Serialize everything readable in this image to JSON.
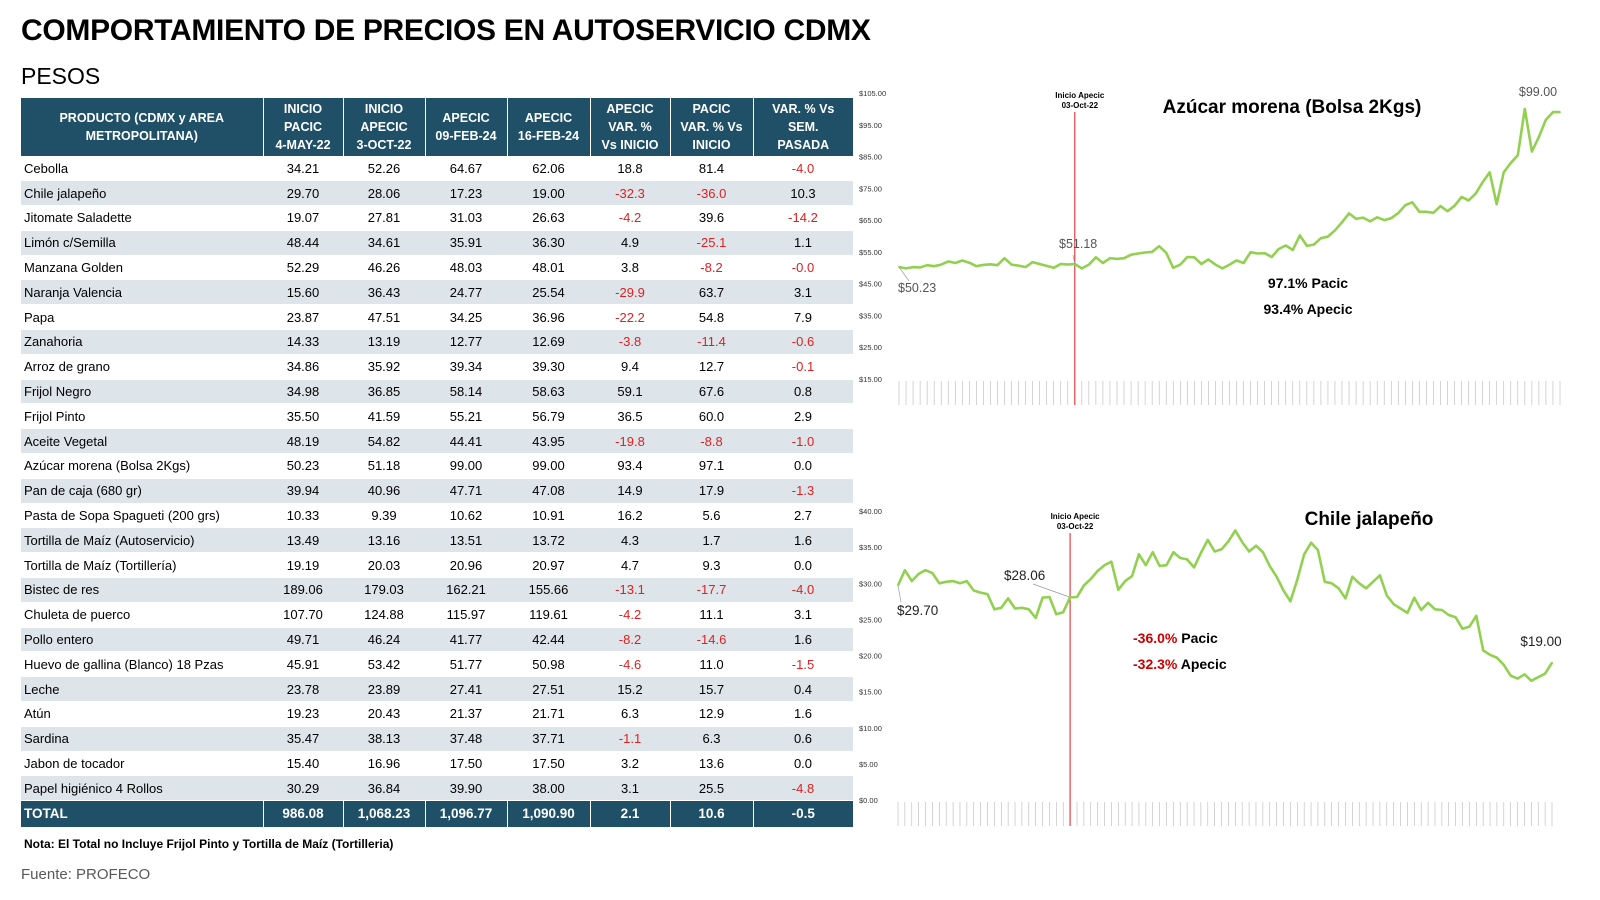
{
  "header": {
    "title": "COMPORTAMIENTO DE PRECIOS EN AUTOSERVICIO CDMX",
    "subtitle": "PESOS"
  },
  "table": {
    "columns": [
      [
        "PRODUCTO (CDMX y AREA",
        "METROPOLITANA)"
      ],
      [
        "INICIO",
        "PACIC",
        "4-MAY-22"
      ],
      [
        "INICIO",
        "APECIC",
        "3-OCT-22"
      ],
      [
        "APECIC",
        "09-FEB-24"
      ],
      [
        "APECIC",
        "16-FEB-24"
      ],
      [
        "APECIC",
        "VAR. %",
        "Vs  INICIO"
      ],
      [
        "PACIC",
        "VAR. % Vs",
        "INICIO"
      ],
      [
        "VAR. % Vs",
        "SEM.",
        "PASADA"
      ]
    ],
    "rows": [
      [
        "Cebolla",
        "34.21",
        "52.26",
        "64.67",
        "62.06",
        "18.8",
        "81.4",
        "-4.0"
      ],
      [
        "Chile jalapeño",
        "29.70",
        "28.06",
        "17.23",
        "19.00",
        "-32.3",
        "-36.0",
        "10.3"
      ],
      [
        "Jitomate Saladette",
        "19.07",
        "27.81",
        "31.03",
        "26.63",
        "-4.2",
        "39.6",
        "-14.2"
      ],
      [
        "Limón c/Semilla",
        "48.44",
        "34.61",
        "35.91",
        "36.30",
        "4.9",
        "-25.1",
        "1.1"
      ],
      [
        "Manzana Golden",
        "52.29",
        "46.26",
        "48.03",
        "48.01",
        "3.8",
        "-8.2",
        "-0.0"
      ],
      [
        "Naranja Valencia",
        "15.60",
        "36.43",
        "24.77",
        "25.54",
        "-29.9",
        "63.7",
        "3.1"
      ],
      [
        "Papa",
        "23.87",
        "47.51",
        "34.25",
        "36.96",
        "-22.2",
        "54.8",
        "7.9"
      ],
      [
        "Zanahoria",
        "14.33",
        "13.19",
        "12.77",
        "12.69",
        "-3.8",
        "-11.4",
        "-0.6"
      ],
      [
        "Arroz de grano",
        "34.86",
        "35.92",
        "39.34",
        "39.30",
        "9.4",
        "12.7",
        "-0.1"
      ],
      [
        "Frijol Negro",
        "34.98",
        "36.85",
        "58.14",
        "58.63",
        "59.1",
        "67.6",
        "0.8"
      ],
      [
        "Frijol Pinto",
        "35.50",
        "41.59",
        "55.21",
        "56.79",
        "36.5",
        "60.0",
        "2.9"
      ],
      [
        "Aceite Vegetal",
        "48.19",
        "54.82",
        "44.41",
        "43.95",
        "-19.8",
        "-8.8",
        "-1.0"
      ],
      [
        "Azúcar morena (Bolsa 2Kgs)",
        "50.23",
        "51.18",
        "99.00",
        "99.00",
        "93.4",
        "97.1",
        "0.0"
      ],
      [
        "Pan de caja (680 gr)",
        "39.94",
        "40.96",
        "47.71",
        "47.08",
        "14.9",
        "17.9",
        "-1.3"
      ],
      [
        "Pasta de Sopa Spagueti (200 grs)",
        "10.33",
        "9.39",
        "10.62",
        "10.91",
        "16.2",
        "5.6",
        "2.7"
      ],
      [
        "Tortilla de Maíz (Autoservicio)",
        "13.49",
        "13.16",
        "13.51",
        "13.72",
        "4.3",
        "1.7",
        "1.6"
      ],
      [
        "Tortilla de Maíz (Tortillería)",
        "19.19",
        "20.03",
        "20.96",
        "20.97",
        "4.7",
        "9.3",
        "0.0"
      ],
      [
        "Bistec de res",
        "189.06",
        "179.03",
        "162.21",
        "155.66",
        "-13.1",
        "-17.7",
        "-4.0"
      ],
      [
        "Chuleta de puerco",
        "107.70",
        "124.88",
        "115.97",
        "119.61",
        "-4.2",
        "11.1",
        "3.1"
      ],
      [
        "Pollo entero",
        "49.71",
        "46.24",
        "41.77",
        "42.44",
        "-8.2",
        "-14.6",
        "1.6"
      ],
      [
        "Huevo de gallina (Blanco) 18 Pzas",
        "45.91",
        "53.42",
        "51.77",
        "50.98",
        "-4.6",
        "11.0",
        "-1.5"
      ],
      [
        "Leche",
        "23.78",
        "23.89",
        "27.41",
        "27.51",
        "15.2",
        "15.7",
        "0.4"
      ],
      [
        "Atún",
        "19.23",
        "20.43",
        "21.37",
        "21.71",
        "6.3",
        "12.9",
        "1.6"
      ],
      [
        "Sardina",
        "35.47",
        "38.13",
        "37.48",
        "37.71",
        "-1.1",
        "6.3",
        "0.6"
      ],
      [
        "Jabon de tocador",
        "15.40",
        "16.96",
        "17.50",
        "17.50",
        "3.2",
        "13.6",
        "0.0"
      ],
      [
        "Papel higiénico 4 Rollos",
        "30.29",
        "36.84",
        "39.90",
        "38.00",
        "3.1",
        "25.5",
        "-4.8"
      ]
    ],
    "total": [
      "TOTAL",
      "986.08",
      "1,068.23",
      "1,096.77",
      "1,090.90",
      "2.1",
      "10.6",
      "-0.5"
    ],
    "negative_color": "#e02020",
    "header_color": "#1f5068",
    "stripe_color": "#dde4ea"
  },
  "note": "Nota: El Total no Incluye Frijol Pinto y Tortilla de Maíz (Tortilleria)",
  "source": "Fuente: PROFECO",
  "chart_data": [
    {
      "type": "line",
      "title": "Azúcar morena (Bolsa 2Kgs)",
      "color": "#92d050",
      "ylim": [
        15,
        105
      ],
      "yticks": [
        "$15.00",
        "$25.00",
        "$35.00",
        "$45.00",
        "$55.00",
        "$65.00",
        "$75.00",
        "$85.00",
        "$95.00",
        "$105.00"
      ],
      "marker_index": 25,
      "marker_label": [
        "Inicio Apecic",
        "03-Oct-22"
      ],
      "annotations": {
        "start": "$50.23",
        "apecic": "$51.18",
        "end": "$99.00"
      },
      "stats": [
        {
          "value": "97.1%",
          "label": " Pacic",
          "color": "#000000"
        },
        {
          "value": "93.4%",
          "label": " Apecic",
          "color": "#000000"
        }
      ],
      "values": [
        50.23,
        49.8,
        50.2,
        50.1,
        50.8,
        50.5,
        51.0,
        52.0,
        51.5,
        52.3,
        51.6,
        50.5,
        50.9,
        51.1,
        50.8,
        53.0,
        51.0,
        50.7,
        50.2,
        51.8,
        51.2,
        50.6,
        50.0,
        51.2,
        51.0,
        51.18,
        49.8,
        51.0,
        53.3,
        51.5,
        53.0,
        52.8,
        53.0,
        54.1,
        54.5,
        54.8,
        55.0,
        56.8,
        54.7,
        50.0,
        51.0,
        53.4,
        53.3,
        51.2,
        52.6,
        51.0,
        49.8,
        51.0,
        52.3,
        51.5,
        54.9,
        54.5,
        54.6,
        53.4,
        55.9,
        57.0,
        55.6,
        60.2,
        56.9,
        57.3,
        59.3,
        59.8,
        61.8,
        64.3,
        67.1,
        65.4,
        65.8,
        64.6,
        65.9,
        65.0,
        65.6,
        67.2,
        69.7,
        70.6,
        67.6,
        67.6,
        67.3,
        69.4,
        67.8,
        69.5,
        72.3,
        71.2,
        73.3,
        76.9,
        80.0,
        70.0,
        80.0,
        83.0,
        85.4,
        100.0,
        86.6,
        91.2,
        96.6,
        99.0,
        99.0
      ]
    },
    {
      "type": "line",
      "title": "Chile jalapeño",
      "color": "#92d050",
      "ylim": [
        0,
        40
      ],
      "yticks": [
        "$0.00",
        "$5.00",
        "$10.00",
        "$15.00",
        "$20.00",
        "$25.00",
        "$30.00",
        "$35.00",
        "$40.00"
      ],
      "marker_index": 25,
      "marker_label": [
        "Inicio Apecic",
        "03-Oct-22"
      ],
      "annotations": {
        "start": "$29.70",
        "apecic": "$28.06",
        "end": "$19.00"
      },
      "stats": [
        {
          "value": "-36.0%",
          "label": " Pacic",
          "color": "#cc0000"
        },
        {
          "value": "-32.3%",
          "label": " Apecic",
          "color": "#cc0000"
        }
      ],
      "values": [
        29.7,
        31.8,
        30.3,
        31.3,
        31.8,
        31.4,
        30.0,
        30.2,
        30.3,
        30.0,
        30.3,
        29.0,
        28.7,
        28.5,
        26.4,
        26.6,
        27.9,
        26.5,
        26.6,
        26.4,
        25.2,
        28.0,
        28.1,
        25.7,
        26.0,
        28.06,
        28.1,
        29.7,
        30.6,
        31.7,
        32.5,
        33.0,
        29.1,
        30.3,
        31.0,
        34.0,
        32.5,
        34.3,
        32.4,
        32.5,
        34.3,
        33.5,
        33.3,
        32.2,
        34.2,
        36.0,
        34.4,
        34.7,
        35.8,
        37.3,
        35.7,
        34.4,
        35.2,
        34.3,
        32.4,
        30.9,
        29.0,
        27.5,
        30.5,
        34.0,
        35.6,
        34.6,
        30.2,
        30.0,
        29.3,
        27.9,
        30.9,
        30.0,
        29.3,
        30.2,
        31.1,
        28.3,
        27.1,
        26.5,
        25.9,
        28.0,
        26.3,
        27.3,
        26.4,
        26.3,
        25.6,
        25.3,
        23.7,
        24.0,
        25.5,
        20.7,
        20.1,
        19.7,
        18.7,
        17.2,
        16.8,
        17.4,
        16.5,
        17.0,
        17.5,
        19.0
      ]
    }
  ]
}
